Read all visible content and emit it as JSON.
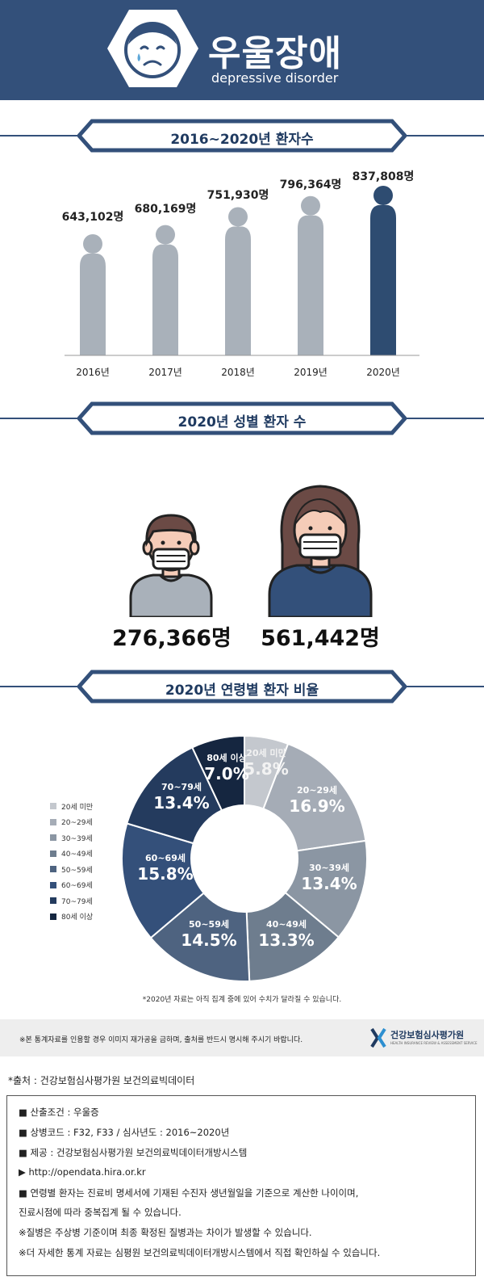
{
  "header": {
    "title": "우울장애",
    "subtitle": "depressive disorder",
    "icon": "sad-face-icon",
    "bg_color": "#33507a"
  },
  "sections": {
    "yearly_title": "2016~2020년 환자수",
    "gender_title": "2020년 성별 환자 수",
    "age_title": "2020년 연령별 환자 비율"
  },
  "yearly": {
    "years": [
      "2016년",
      "2017년",
      "2018년",
      "2019년",
      "2020년"
    ],
    "values": [
      "643,102명",
      "680,169명",
      "751,930명",
      "796,364명",
      "837,808명"
    ]
  },
  "gender": {
    "male_count": "276,366명",
    "female_count": "561,442명",
    "male_icon": "male-patient-mask-icon",
    "female_icon": "female-patient-mask-icon"
  },
  "chart_data": [
    {
      "type": "bar",
      "categories": [
        "2016년",
        "2017년",
        "2018년",
        "2019년",
        "2020년"
      ],
      "values": [
        643102,
        680169,
        751930,
        796364,
        837808
      ],
      "title": "2016~2020년 환자수",
      "colors": [
        "#a9b1ba",
        "#a9b1ba",
        "#a9b1ba",
        "#a9b1ba",
        "#2e4c71"
      ]
    },
    {
      "type": "pie",
      "title": "2020년 연령별 환자 비율",
      "categories": [
        "20세 미만",
        "20~29세",
        "30~39세",
        "40~49세",
        "50~59세",
        "60~69세",
        "70~79세",
        "80세 이상"
      ],
      "values": [
        5.8,
        16.9,
        13.4,
        13.3,
        14.5,
        15.8,
        13.4,
        7.0
      ],
      "labels": [
        "5.8%",
        "16.9%",
        "13.4%",
        "13.3%",
        "14.5%",
        "15.8%",
        "13.4%",
        "7.0%"
      ],
      "colors": [
        "#c4c8ce",
        "#a5acb6",
        "#8b96a3",
        "#6e7d8e",
        "#4e6380",
        "#34507a",
        "#243b5e",
        "#152640"
      ],
      "legend": "left"
    }
  ],
  "pie_note": "*2020년 자료는 아직 집계 중에 있어 수치가 달라질 수 있습니다.",
  "notice": {
    "text": "※본 통계자료를 인용할 경우 이미지 재가공을 금하며, 출처를 반드시 명시해 주시기 바랍니다.",
    "org_name": "건강보험심사평가원",
    "org_english": "HEALTH INSURANCE REVIEW & ASSESSMENT SERVICE",
    "logo_icon": "hira-logo-icon"
  },
  "source": "*출처 : 건강보험심사평가원 보건의료빅데이터",
  "info_lines": [
    "■ 산출조건 : 우울증",
    "■ 상병코드 : F32, F33 / 심사년도 : 2016~2020년",
    "■ 제공 : 건강보험심사평가원 보건의료빅데이터개방시스템",
    "▶ http://opendata.hira.or.kr",
    "■ 연령별 환자는 진료비 명세서에 기재된 수진자 생년월일을 기준으로 계산한 나이이며,",
    "   진료시점에 따라 중복집계 될 수 있습니다.",
    "※질병은 주상병 기준이며 최종 확정된 질병과는 차이가 발생할 수 있습니다.",
    "※더 자세한 통계 자료는 심평원 보건의료빅데이터개방시스템에서 직접 확인하실 수 있습니다."
  ]
}
